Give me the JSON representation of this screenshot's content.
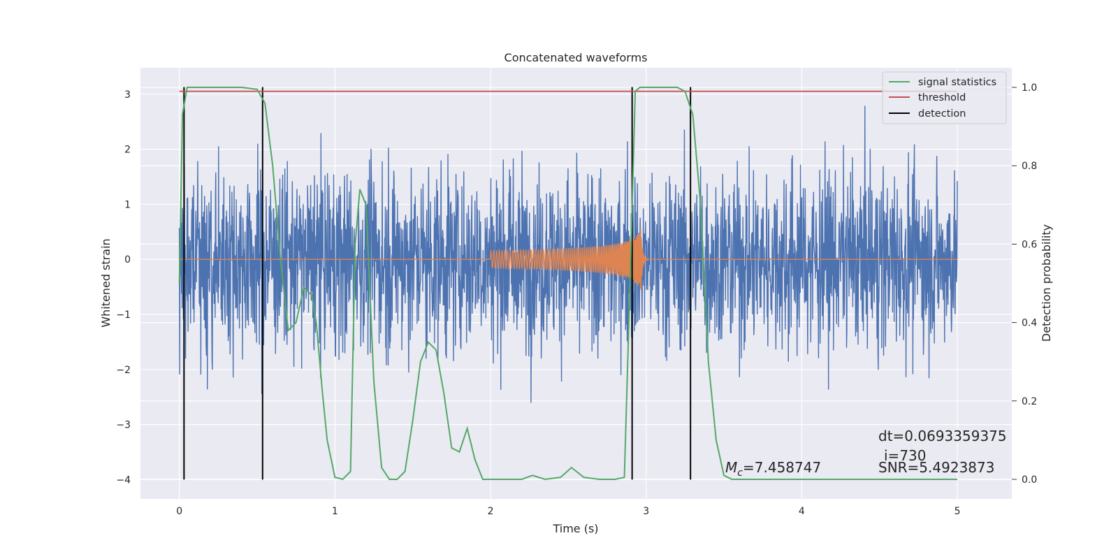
{
  "chart_data": {
    "type": "line",
    "title": "Concatenated waveforms",
    "xlabel": "Time (s)",
    "ylabel": "Whitened strain",
    "y2label": "Detection probability",
    "xlim": [
      -0.25,
      5.35
    ],
    "ylim": [
      -4.35,
      3.48
    ],
    "y2lim": [
      -0.05,
      1.05
    ],
    "xticks": [
      "0",
      "1",
      "2",
      "3",
      "4",
      "5"
    ],
    "yticks": [
      "3",
      "2",
      "1",
      "0",
      "−1",
      "−2",
      "−3",
      "−4"
    ],
    "y2ticks": [
      "1.0",
      "0.8",
      "0.6",
      "0.4",
      "0.2",
      "0.0"
    ],
    "grid": true,
    "legend_position": "top-right",
    "series": [
      {
        "name": "",
        "description": "whitened noise strain, 0-5 s, amplitude roughly within -3.7..2.9",
        "color": "#4c72b0",
        "x_range": [
          0,
          5
        ]
      },
      {
        "name": "",
        "description": "injected chirp waveform, zero elsewhere, rises from about 2.0 s and merges near 2.97 s",
        "color": "#dd8452",
        "x_range": [
          0,
          5
        ],
        "chirp_start": 2.0,
        "chirp_merger": 2.97
      },
      {
        "name": "signal statistics",
        "axis": "right",
        "color": "#55a868",
        "x": [
          0,
          0.02,
          0.05,
          0.1,
          0.2,
          0.4,
          0.5,
          0.55,
          0.6,
          0.65,
          0.7,
          0.75,
          0.8,
          0.85,
          0.88,
          0.92,
          0.95,
          1.0,
          1.05,
          1.1,
          1.13,
          1.16,
          1.2,
          1.25,
          1.3,
          1.35,
          1.4,
          1.45,
          1.5,
          1.55,
          1.6,
          1.65,
          1.7,
          1.75,
          1.8,
          1.85,
          1.9,
          1.95,
          2.0,
          2.1,
          2.2,
          2.27,
          2.35,
          2.45,
          2.52,
          2.6,
          2.7,
          2.8,
          2.86,
          2.9,
          2.93,
          2.96,
          3.0,
          3.1,
          3.2,
          3.25,
          3.3,
          3.35,
          3.4,
          3.45,
          3.5,
          3.55,
          3.6,
          3.8,
          4.0,
          4.5,
          5.0
        ],
        "values": [
          0.5,
          0.93,
          1.0,
          1.0,
          1.0,
          1.0,
          0.995,
          0.96,
          0.8,
          0.56,
          0.38,
          0.4,
          0.49,
          0.47,
          0.4,
          0.22,
          0.1,
          0.005,
          0.0,
          0.02,
          0.6,
          0.74,
          0.7,
          0.25,
          0.03,
          0.0,
          0.0,
          0.02,
          0.15,
          0.3,
          0.35,
          0.33,
          0.22,
          0.08,
          0.07,
          0.13,
          0.05,
          0.0,
          0.0,
          0.0,
          0.0,
          0.01,
          0.0,
          0.005,
          0.03,
          0.005,
          0.0,
          0.0,
          0.005,
          0.55,
          0.99,
          1.0,
          1.0,
          1.0,
          1.0,
          0.99,
          0.93,
          0.7,
          0.3,
          0.1,
          0.01,
          0.0,
          0.0,
          0.0,
          0.0,
          0.0,
          0.0
        ]
      },
      {
        "name": "threshold",
        "axis": "right",
        "color": "#c44e52",
        "x": [
          0,
          5
        ],
        "values": [
          0.99,
          0.99
        ]
      },
      {
        "name": "detection",
        "type": "vlines",
        "color": "#000000",
        "x": [
          0.03,
          0.535,
          2.91,
          3.285
        ],
        "ymin": -4,
        "ymax": 3.13
      }
    ],
    "annotations": {
      "mc_label": "=7.458747",
      "dt_label": "dt=0.0693359375",
      "i_label": "i=730",
      "snr_label": "SNR=5.4923873"
    },
    "colors": {
      "axes_bg": "#eaeaf2",
      "grid": "#ffffff"
    }
  }
}
